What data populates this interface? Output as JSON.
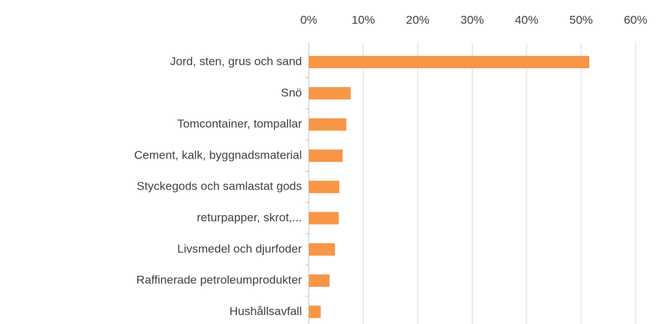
{
  "chart_data": {
    "type": "barh",
    "categories": [
      "Jord, sten, grus och sand",
      "Snö",
      "Tomcontainer, tompallar",
      "Cement, kalk, byggnadsmaterial",
      "Styckegods och samlastat gods",
      "returpapper, skrot,...",
      "Livsmedel och djurfoder",
      "Raffinerade petroleumprodukter",
      "Hushållsavfall"
    ],
    "values": [
      51.5,
      7.7,
      6.9,
      6.2,
      5.6,
      5.5,
      4.8,
      3.8,
      2.2
    ],
    "color": "#f79646",
    "xlim": [
      0,
      60
    ],
    "xticks": [
      {
        "value": 0,
        "label": "0%"
      },
      {
        "value": 10,
        "label": "10%"
      },
      {
        "value": 20,
        "label": "20%"
      },
      {
        "value": 30,
        "label": "30%"
      },
      {
        "value": 40,
        "label": "40%"
      },
      {
        "value": 50,
        "label": "50%"
      },
      {
        "value": 60,
        "label": "60%"
      }
    ],
    "grid": true
  }
}
